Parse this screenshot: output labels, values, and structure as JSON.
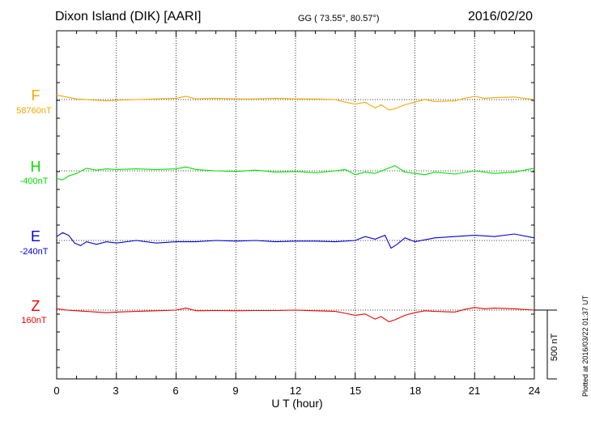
{
  "header": {
    "station": "Dixon Island (DIK)  [AARI]",
    "coords": "GG ( 73.55°,  80.57°)",
    "date": "2016/02/20"
  },
  "plotted_note": "Plotted at 2016/03/22 01:37 UT",
  "scale_label": "500 nT",
  "chart_data": {
    "type": "line",
    "title": "Dixon Island (DIK)  [AARI]",
    "xlabel": "U T (hour)",
    "ylabel": "",
    "xlim": [
      0,
      24
    ],
    "xticks": [
      "0",
      "3",
      "6",
      "9",
      "12",
      "15",
      "18",
      "21",
      "24"
    ],
    "grid": true,
    "scale_bar_nT": 500,
    "series": [
      {
        "name": "F",
        "baseline": "58760nT",
        "color": "#f5a800",
        "x": [
          0,
          0.5,
          1,
          1.5,
          2,
          2.5,
          3,
          4,
          5,
          6,
          6.5,
          7,
          8,
          9,
          10,
          11,
          12,
          13,
          14,
          14.5,
          15,
          15.5,
          16,
          16.3,
          16.7,
          17,
          17.5,
          18,
          18.5,
          19,
          20,
          20.5,
          21,
          21.5,
          22,
          23,
          24
        ],
        "values": [
          35,
          20,
          5,
          0,
          -5,
          -10,
          -5,
          0,
          5,
          10,
          25,
          5,
          10,
          5,
          5,
          10,
          5,
          5,
          0,
          -20,
          -35,
          -20,
          -65,
          -40,
          -80,
          -70,
          -40,
          -20,
          0,
          -15,
          -10,
          10,
          25,
          10,
          15,
          20,
          0
        ]
      },
      {
        "name": "H",
        "baseline": "-400nT",
        "color": "#00e000",
        "x": [
          0,
          0.3,
          0.6,
          1,
          1.5,
          2,
          2.5,
          3,
          4,
          5,
          6,
          6.5,
          7,
          8,
          9,
          10,
          11,
          12,
          13,
          14,
          14.5,
          15,
          15.5,
          16,
          16.5,
          17,
          17.5,
          18,
          18.5,
          19,
          20,
          21,
          22,
          23,
          24
        ],
        "values": [
          -60,
          -70,
          -40,
          -20,
          20,
          5,
          15,
          10,
          15,
          10,
          15,
          30,
          10,
          0,
          -5,
          5,
          -10,
          -5,
          -15,
          0,
          10,
          -30,
          -10,
          -20,
          10,
          40,
          -10,
          -20,
          -30,
          -10,
          -25,
          0,
          -20,
          -10,
          20
        ]
      },
      {
        "name": "E",
        "baseline": "-240nT",
        "color": "#0000dd",
        "x": [
          0,
          0.3,
          0.6,
          0.9,
          1.2,
          1.5,
          2,
          2.5,
          3,
          4,
          5,
          6,
          7,
          8,
          9,
          10,
          11,
          12,
          13,
          14,
          15,
          15.5,
          16,
          16.5,
          16.8,
          17.1,
          17.5,
          18,
          19,
          20,
          21,
          22,
          23,
          24
        ],
        "values": [
          30,
          60,
          40,
          -20,
          -40,
          -10,
          -30,
          -10,
          -20,
          0,
          -20,
          -10,
          -10,
          0,
          -5,
          0,
          -10,
          -5,
          -5,
          -10,
          0,
          30,
          10,
          40,
          -60,
          -30,
          20,
          -10,
          20,
          30,
          40,
          30,
          50,
          20
        ]
      },
      {
        "name": "Z",
        "baseline": "160nT",
        "color": "#ee0000",
        "x": [
          0,
          0.5,
          1,
          1.5,
          2,
          2.5,
          3,
          4,
          5,
          6,
          6.5,
          7,
          8,
          9,
          10,
          11,
          12,
          13,
          14,
          14.5,
          15,
          15.5,
          16,
          16.3,
          16.7,
          17,
          17.5,
          18,
          18.5,
          19,
          20,
          20.5,
          21,
          21.5,
          22,
          23,
          24
        ],
        "values": [
          10,
          0,
          -5,
          -10,
          -15,
          -20,
          -15,
          -10,
          -5,
          0,
          15,
          -5,
          -3,
          -5,
          -3,
          -3,
          0,
          -5,
          -10,
          -25,
          -40,
          -30,
          -70,
          -50,
          -90,
          -75,
          -40,
          -20,
          -5,
          -10,
          -15,
          5,
          20,
          10,
          15,
          10,
          0
        ]
      }
    ]
  }
}
